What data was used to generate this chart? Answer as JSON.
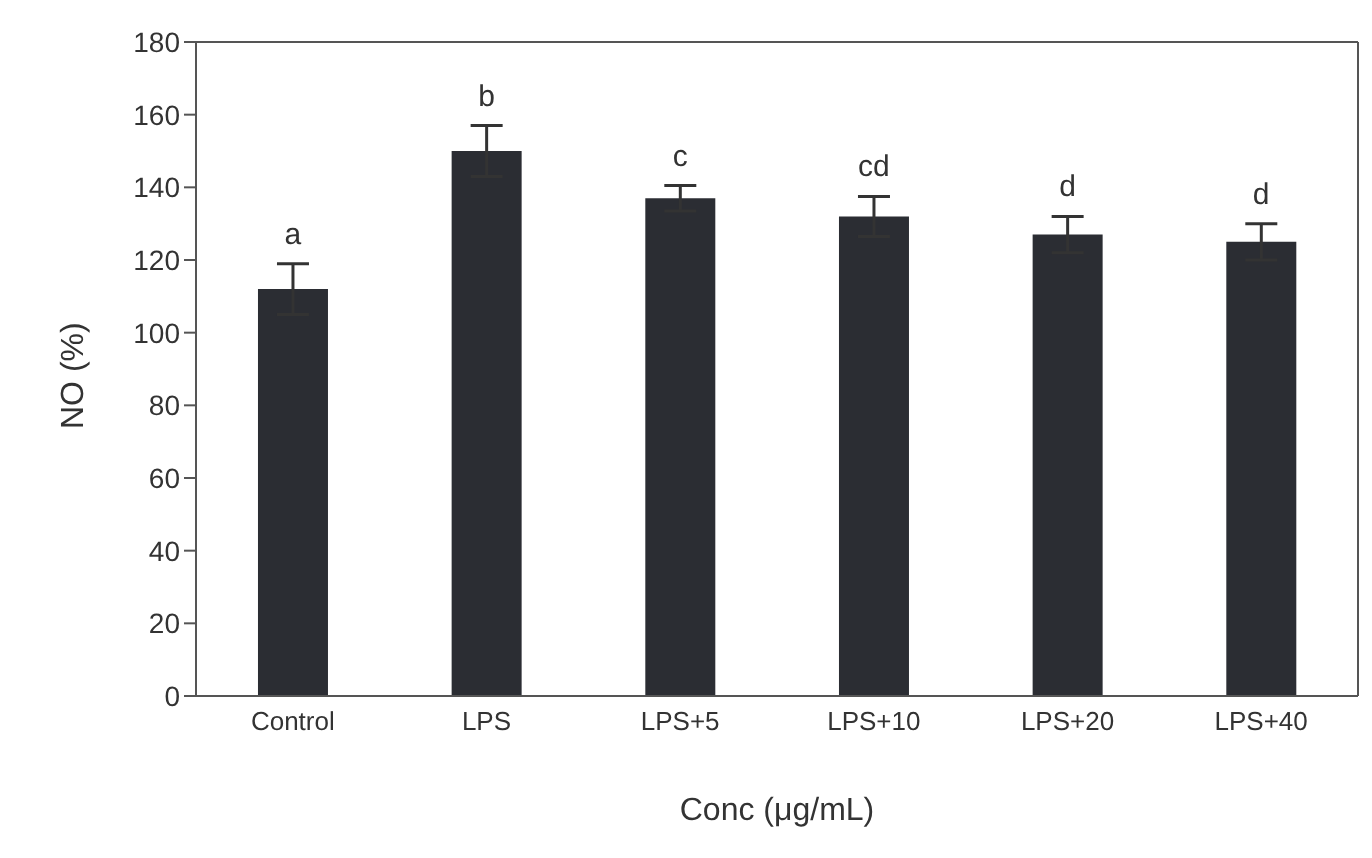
{
  "chart_data": {
    "type": "bar",
    "xlabel": "Conc (μg/mL)",
    "ylabel": "NO (%)",
    "categories": [
      "Control",
      "LPS",
      "LPS+5",
      "LPS+10",
      "LPS+20",
      "LPS+40"
    ],
    "values": [
      112,
      150,
      137,
      132,
      127,
      125
    ],
    "errors": [
      7,
      7,
      3.5,
      5.5,
      5,
      5
    ],
    "color": "#2b2d33",
    "ylim": [
      0,
      180
    ],
    "yticks": [
      0,
      20,
      40,
      60,
      80,
      100,
      120,
      140,
      160,
      180
    ],
    "grid": false,
    "annotations": [
      {
        "text": "a",
        "x": "Control",
        "y": 112
      },
      {
        "text": "b",
        "x": "LPS",
        "y": 150
      },
      {
        "text": "c",
        "x": "LPS+5",
        "y": 137
      },
      {
        "text": "cd",
        "x": "LPS+10",
        "y": 132
      },
      {
        "text": "d",
        "x": "LPS+20",
        "y": 127
      },
      {
        "text": "d",
        "x": "LPS+40",
        "y": 125
      }
    ]
  }
}
